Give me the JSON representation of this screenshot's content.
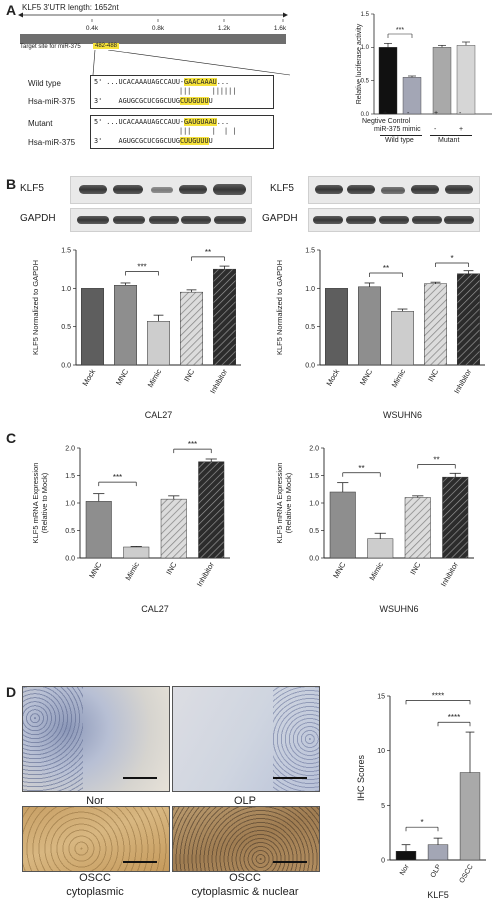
{
  "panels": {
    "A": "A",
    "B": "B",
    "C": "C",
    "D": "D"
  },
  "utr": {
    "title": "KLF5 3'UTR length: 1652nt",
    "ticks": [
      "0.4k",
      "0.8k",
      "1.2k",
      "1.6k"
    ],
    "target_label": "Target site for miR-375",
    "target_range": "482-488"
  },
  "sequences": {
    "wild_label": "Wild type",
    "mir_label": "Hsa-miR-375",
    "mutant_label": "Mutant",
    "mir_label2": "Hsa-miR-375",
    "wt_prefix": "5' ...UCACAAAUAGCCAUU-",
    "wt_site": "GAACAAAU",
    "wt_suffix": "...",
    "mut_prefix": "5' ...UCACAAAUAGCCAUU-",
    "mut_site": "GAUGUAAU",
    "mut_suffix": "...",
    "mir_prefix": "3'    AGUGCGCUCGGCUUG",
    "mir_site": "CUUGUUU",
    "mir_suffix": "U",
    "bonds_wt": "|||     ||||||",
    "bonds_mut": "|||     |  | |"
  },
  "luciferase": {
    "ylabel": "Relative luciferase activity",
    "neg_label": "Negtive Control",
    "mimic_label": "miR-375 mimic",
    "neg_signs": [
      "+",
      "-",
      "+",
      "-"
    ],
    "mimic_signs": [
      "-",
      "+",
      "-",
      "+"
    ],
    "group1": "Wild type",
    "group2": "Mutant",
    "sig": "***"
  },
  "blots": {
    "klf5": "KLF5",
    "gapdh": "GAPDH"
  },
  "strings": {
    "cal27": "CAL27",
    "wsuhn6": "WSUHN6",
    "klf5_gene": "KLF5"
  },
  "tissue": {
    "nor": "Nor",
    "olp": "OLP",
    "oscc1": "OSCC",
    "oscc1_sub": "cytoplasmic",
    "oscc2": "OSCC",
    "oscc2_sub": "cytoplasmic & nuclear"
  },
  "chart_data": [
    {
      "id": "A-luciferase",
      "type": "bar",
      "categories": [
        "Wild type NC",
        "Wild type mimic",
        "Mutant NC",
        "Mutant mimic"
      ],
      "values": [
        1.0,
        0.55,
        1.0,
        1.03
      ],
      "errors": [
        0.06,
        0.02,
        0.03,
        0.05
      ],
      "colors": [
        "#111111",
        "#a3a6b5",
        "#a9a9a9",
        "#d6d6d6"
      ],
      "ylim": [
        0,
        1.5
      ],
      "yticks": [
        "0.0",
        "0.5",
        "1.0",
        "1.5"
      ],
      "ylabel": "Relative luciferase activity",
      "sig": [
        "***"
      ]
    },
    {
      "id": "B-CAL27",
      "type": "bar",
      "categories": [
        "Mock",
        "MNC",
        "Mimic",
        "INC",
        "Inhibitor"
      ],
      "values": [
        1.0,
        1.04,
        0.57,
        0.95,
        1.25
      ],
      "errors": [
        0.0,
        0.03,
        0.08,
        0.03,
        0.04
      ],
      "ylim": [
        0,
        1.5
      ],
      "yticks": [
        "0.0",
        "0.5",
        "1.0",
        "1.5"
      ],
      "ylabel": "KLF5 Normalized to GAPDH",
      "xlabel": "CAL27",
      "sig": [
        "***",
        "**"
      ]
    },
    {
      "id": "B-WSUHN6",
      "type": "bar",
      "categories": [
        "Mock",
        "MNC",
        "Mimic",
        "INC",
        "Inhibitor"
      ],
      "values": [
        1.0,
        1.02,
        0.7,
        1.06,
        1.19
      ],
      "errors": [
        0.0,
        0.05,
        0.03,
        0.02,
        0.04
      ],
      "ylim": [
        0,
        1.5
      ],
      "yticks": [
        "0.0",
        "0.5",
        "1.0",
        "1.5"
      ],
      "ylabel": "KLF5 Normalized to GAPDH",
      "xlabel": "WSUHN6",
      "sig": [
        "**",
        "*"
      ]
    },
    {
      "id": "C-CAL27",
      "type": "bar",
      "categories": [
        "MNC",
        "Mimic",
        "INC",
        "Inhibitor"
      ],
      "values": [
        1.03,
        0.2,
        1.07,
        1.75
      ],
      "errors": [
        0.14,
        0.01,
        0.06,
        0.05
      ],
      "ylim": [
        0,
        2.0
      ],
      "yticks": [
        "0.0",
        "0.5",
        "1.0",
        "1.5",
        "2.0"
      ],
      "ylabel": "KLF5 mRNA Expression (Relative to Mock)",
      "xlabel": "CAL27",
      "sig": [
        "***",
        "***"
      ]
    },
    {
      "id": "C-WSUHN6",
      "type": "bar",
      "categories": [
        "MNC",
        "Mimic",
        "INC",
        "Inhibitor"
      ],
      "values": [
        1.2,
        0.35,
        1.1,
        1.47
      ],
      "errors": [
        0.17,
        0.1,
        0.03,
        0.07
      ],
      "ylim": [
        0,
        2.0
      ],
      "yticks": [
        "0.0",
        "0.5",
        "1.0",
        "1.5",
        "2.0"
      ],
      "ylabel": "KLF5 mRNA Expression (Relative to Mock)",
      "xlabel": "WSUHN6",
      "sig": [
        "**",
        "**"
      ]
    },
    {
      "id": "D-IHC",
      "type": "bar",
      "categories": [
        "Nor",
        "OLP",
        "OSCC"
      ],
      "values": [
        0.8,
        1.4,
        8.0
      ],
      "errors": [
        0.6,
        0.6,
        3.7
      ],
      "colors": [
        "#111111",
        "#a3a6b5",
        "#a9a9a9"
      ],
      "ylim": [
        0,
        15
      ],
      "yticks": [
        "0",
        "5",
        "10",
        "15"
      ],
      "ylabel": "IHC Scores",
      "xlabel": "KLF5",
      "sig": [
        "*",
        "****",
        "****"
      ]
    }
  ]
}
